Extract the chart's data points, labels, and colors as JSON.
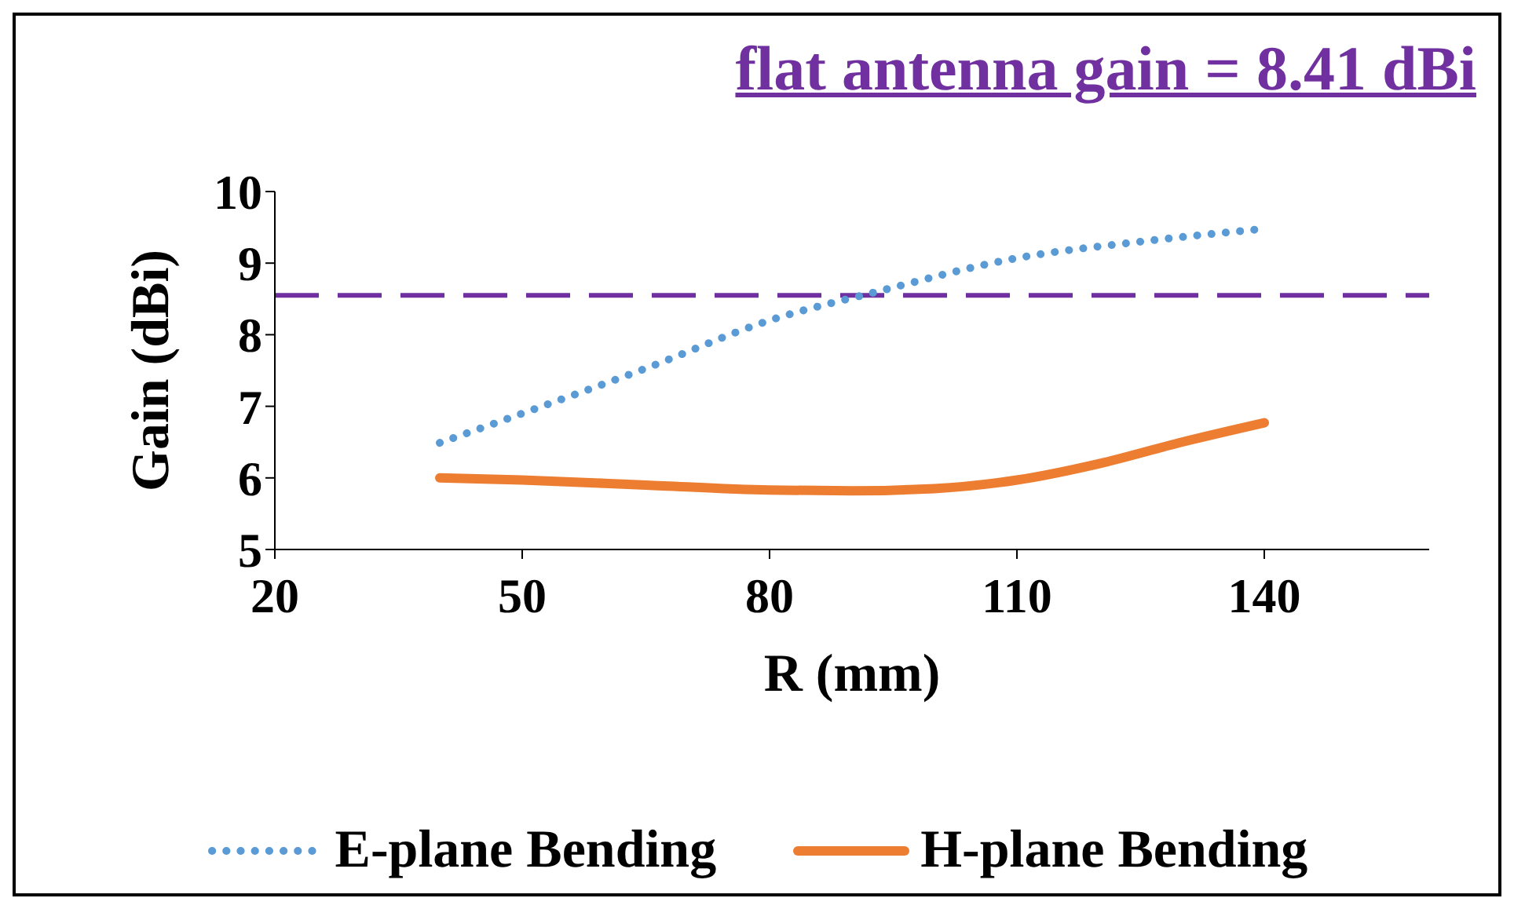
{
  "chart_data": {
    "type": "line",
    "title": "flat antenna gain = 8.41 dBi",
    "xlabel": "R (mm)",
    "ylabel": "Gain (dBi)",
    "xlim": [
      20,
      160
    ],
    "xticks": [
      20,
      50,
      80,
      110,
      140
    ],
    "ylim": [
      5,
      10
    ],
    "yticks": [
      5,
      6,
      7,
      8,
      9,
      10
    ],
    "grid": false,
    "legend": "bottom",
    "series": [
      {
        "name": "E-plane Bending",
        "color": "#5b9bd5",
        "line_style": "dotted",
        "x": [
          40,
          50,
          65,
          80,
          93,
          110,
          125,
          140
        ],
        "values": [
          6.49,
          6.9,
          7.53,
          8.2,
          8.6,
          9.07,
          9.3,
          9.48
        ]
      },
      {
        "name": "H-plane Bending",
        "color": "#ed7d31",
        "line_style": "solid",
        "x": [
          40,
          50,
          65,
          80,
          90,
          100,
          110,
          120,
          130,
          140
        ],
        "values": [
          6.0,
          5.97,
          5.9,
          5.83,
          5.82,
          5.85,
          5.97,
          6.2,
          6.5,
          6.77
        ]
      }
    ],
    "ref_lines": [
      {
        "axis": "y",
        "value": 8.55,
        "color": "#7030a0",
        "line_style": "dashed"
      }
    ]
  }
}
